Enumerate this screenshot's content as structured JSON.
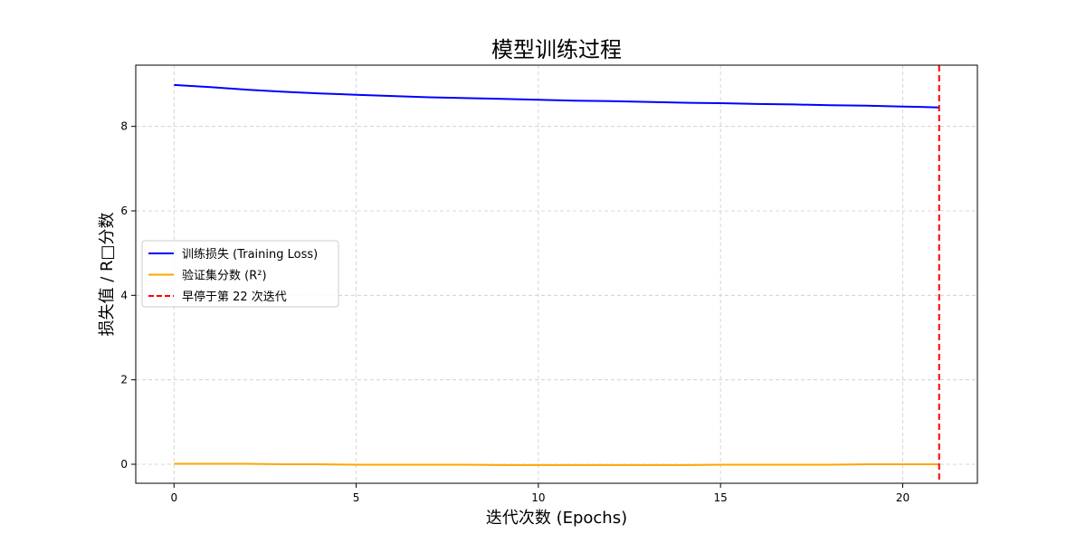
{
  "chart_data": {
    "type": "line",
    "title": "模型训练过程",
    "xlabel": "迭代次数 (Epochs)",
    "ylabel": "损失值 / R□分数",
    "xlim": [
      -1.05,
      22.05
    ],
    "ylim": [
      -0.45,
      9.45
    ],
    "xticks": [
      0,
      5,
      10,
      15,
      20
    ],
    "yticks": [
      0,
      2,
      4,
      6,
      8
    ],
    "grid": true,
    "legend_position": "center-left",
    "x": [
      0,
      1,
      2,
      3,
      4,
      5,
      6,
      7,
      8,
      9,
      10,
      11,
      12,
      13,
      14,
      15,
      16,
      17,
      18,
      19,
      20,
      21
    ],
    "series": [
      {
        "name": "训练损失 (Training Loss)",
        "color": "#0000ff",
        "values": [
          8.98,
          8.93,
          8.87,
          8.82,
          8.78,
          8.75,
          8.72,
          8.69,
          8.67,
          8.65,
          8.63,
          8.61,
          8.6,
          8.58,
          8.56,
          8.55,
          8.53,
          8.52,
          8.5,
          8.49,
          8.47,
          8.45
        ]
      },
      {
        "name": "验证集分数 (R²)",
        "color": "#ffa500",
        "values": [
          0.01,
          0.01,
          0.01,
          0.0,
          0.0,
          -0.01,
          -0.01,
          -0.01,
          -0.01,
          -0.02,
          -0.02,
          -0.02,
          -0.02,
          -0.02,
          -0.02,
          -0.01,
          -0.01,
          -0.01,
          -0.01,
          0.0,
          0.0,
          0.0
        ]
      }
    ],
    "vline": {
      "x": 21,
      "color": "#ff0000",
      "label": "早停于第 22 次迭代"
    }
  }
}
